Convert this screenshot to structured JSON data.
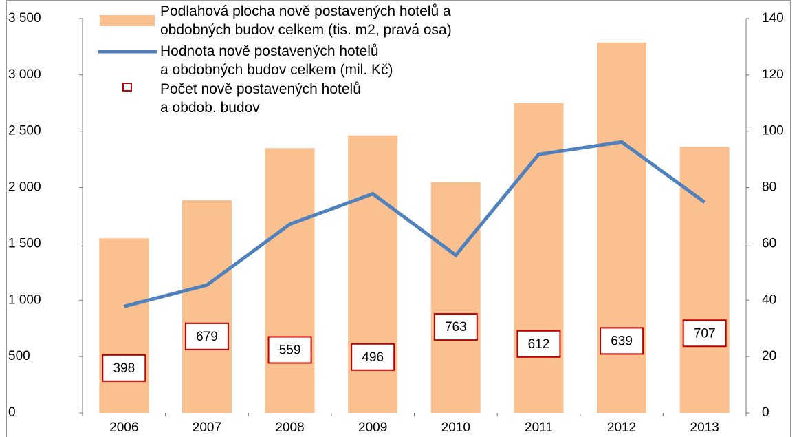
{
  "chart_data": {
    "type": "combo",
    "categories": [
      "2006",
      "2007",
      "2008",
      "2009",
      "2010",
      "2011",
      "2012",
      "2013"
    ],
    "series": [
      {
        "name": "Podlahová plocha nově postavených hotelů a\nobdobných budov celkem (tis. m2, pravá osa)",
        "type": "bar",
        "axis": "y2",
        "color": "#fac090",
        "values": [
          62,
          75.5,
          94,
          98.5,
          82,
          110,
          131.5,
          94.5
        ]
      },
      {
        "name": "Hodnota nově postavených hotelů\na obdobných budov celkem (mil. Kč)",
        "type": "line",
        "axis": "y",
        "color": "#4f81bd",
        "values": [
          945,
          1135,
          1675,
          1945,
          1400,
          2295,
          2405,
          1870
        ]
      },
      {
        "name": "Počet nově postavených hotelů\na obdob. budov",
        "type": "marker",
        "axis": "y",
        "color": "#c00000",
        "values": [
          398,
          679,
          559,
          496,
          763,
          612,
          639,
          707
        ]
      }
    ],
    "ylim": [
      0,
      3500
    ],
    "yticks": [
      0,
      500,
      {
        "value": 1000,
        "label": "1 000"
      },
      {
        "value": 1500,
        "label": "1 500"
      },
      {
        "value": 2000,
        "label": "2 000"
      },
      {
        "value": 2500,
        "label": "2 500"
      },
      {
        "value": 3000,
        "label": "3 000"
      },
      {
        "value": 3500,
        "label": "3 500"
      }
    ],
    "y2lim": [
      0,
      140
    ],
    "y2ticks": [
      0,
      20,
      40,
      60,
      80,
      100,
      120,
      140
    ],
    "grid": false
  }
}
